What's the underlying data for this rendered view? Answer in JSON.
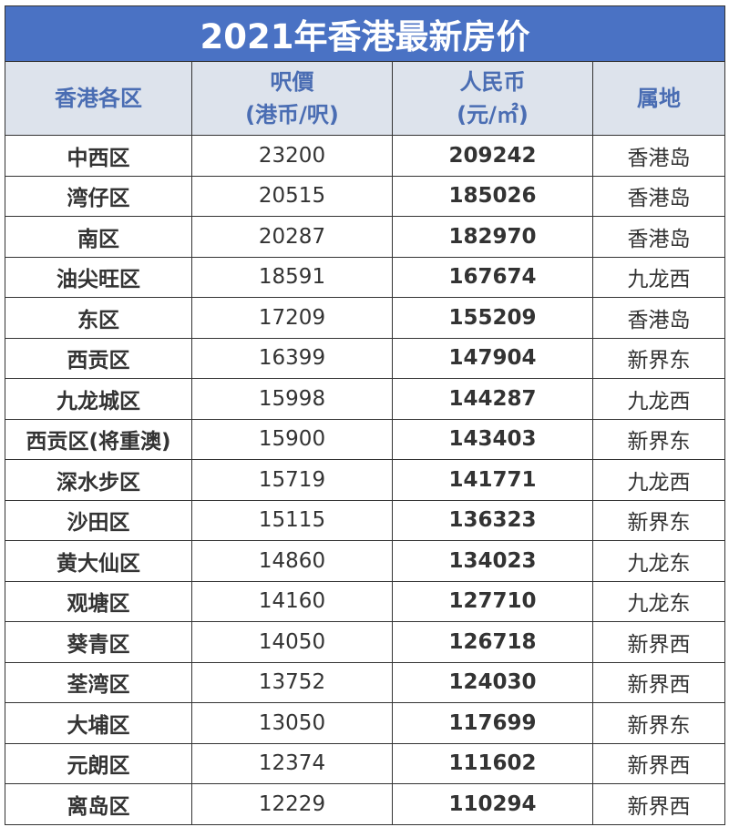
{
  "title": "2021年香港最新房价",
  "header": {
    "district": "香港各区",
    "price_hkd_line1": "呎價",
    "price_hkd_line2": "(港币/呎)",
    "price_rmb_line1": "人民币",
    "price_rmb_line2": "(元/㎡)",
    "region": "属地"
  },
  "colors": {
    "title_bg": "#4a72c4",
    "header_bg": "#dde3ec",
    "header_text": "#4a6db3"
  },
  "rows": [
    {
      "district": "中西区",
      "hkd": "23200",
      "rmb": "209242",
      "region": "香港岛"
    },
    {
      "district": "湾仔区",
      "hkd": "20515",
      "rmb": "185026",
      "region": "香港岛"
    },
    {
      "district": "南区",
      "hkd": "20287",
      "rmb": "182970",
      "region": "香港岛"
    },
    {
      "district": "油尖旺区",
      "hkd": "18591",
      "rmb": "167674",
      "region": "九龙西"
    },
    {
      "district": "东区",
      "hkd": "17209",
      "rmb": "155209",
      "region": "香港岛"
    },
    {
      "district": "西贡区",
      "hkd": "16399",
      "rmb": "147904",
      "region": "新界东"
    },
    {
      "district": "九龙城区",
      "hkd": "15998",
      "rmb": "144287",
      "region": "九龙西"
    },
    {
      "district": "西贡区(将重澳)",
      "hkd": "15900",
      "rmb": "143403",
      "region": "新界东"
    },
    {
      "district": "深水步区",
      "hkd": "15719",
      "rmb": "141771",
      "region": "九龙西"
    },
    {
      "district": "沙田区",
      "hkd": "15115",
      "rmb": "136323",
      "region": "新界东"
    },
    {
      "district": "黄大仙区",
      "hkd": "14860",
      "rmb": "134023",
      "region": "九龙东"
    },
    {
      "district": "观塘区",
      "hkd": "14160",
      "rmb": "127710",
      "region": "九龙东"
    },
    {
      "district": "葵青区",
      "hkd": "14050",
      "rmb": "126718",
      "region": "新界西"
    },
    {
      "district": "荃湾区",
      "hkd": "13752",
      "rmb": "124030",
      "region": "新界西"
    },
    {
      "district": "大埔区",
      "hkd": "13050",
      "rmb": "117699",
      "region": "新界东"
    },
    {
      "district": "元朗区",
      "hkd": "12374",
      "rmb": "111602",
      "region": "新界西"
    },
    {
      "district": "离岛区",
      "hkd": "12229",
      "rmb": "110294",
      "region": "新界西"
    }
  ]
}
